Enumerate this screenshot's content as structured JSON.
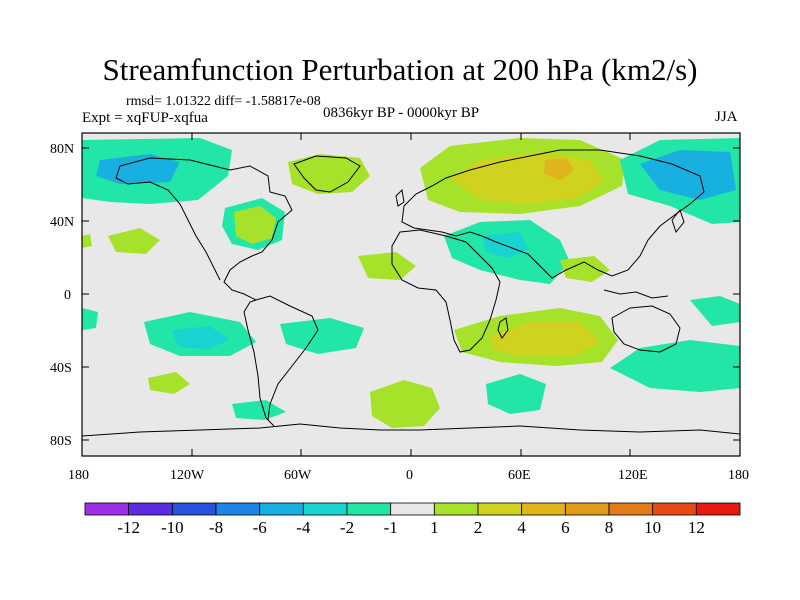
{
  "title": "Streamfunction Perturbation at 200 hPa (km2/s)",
  "stats": "rmsd= 1.01322 diff= -1.58817e-08",
  "experiment": "Expt = xqFUP-xqfua",
  "period": "0836kyr BP - 0000kyr BP",
  "season": "JJA",
  "lat_labels": [
    "80N",
    "40N",
    "0",
    "40S",
    "80S"
  ],
  "lon_labels": [
    "180",
    "120W",
    "60W",
    "0",
    "60E",
    "120E",
    "180"
  ],
  "colorbar": {
    "labels": [
      "-12",
      "-10",
      "-8",
      "-6",
      "-4",
      "-2",
      "-1",
      "1",
      "2",
      "4",
      "6",
      "8",
      "10",
      "12"
    ],
    "colors": [
      "#9b30e8",
      "#5a2de0",
      "#2a52e0",
      "#1c86e6",
      "#17b0e0",
      "#18d4d0",
      "#22e6a8",
      "#e8e8e8",
      "#a6e22a",
      "#cfd21f",
      "#dfb51d",
      "#e39a1a",
      "#e57a18",
      "#e64a14",
      "#e61a10"
    ]
  },
  "colors": {
    "background": "#e8e8e8",
    "coast": "#000000"
  }
}
